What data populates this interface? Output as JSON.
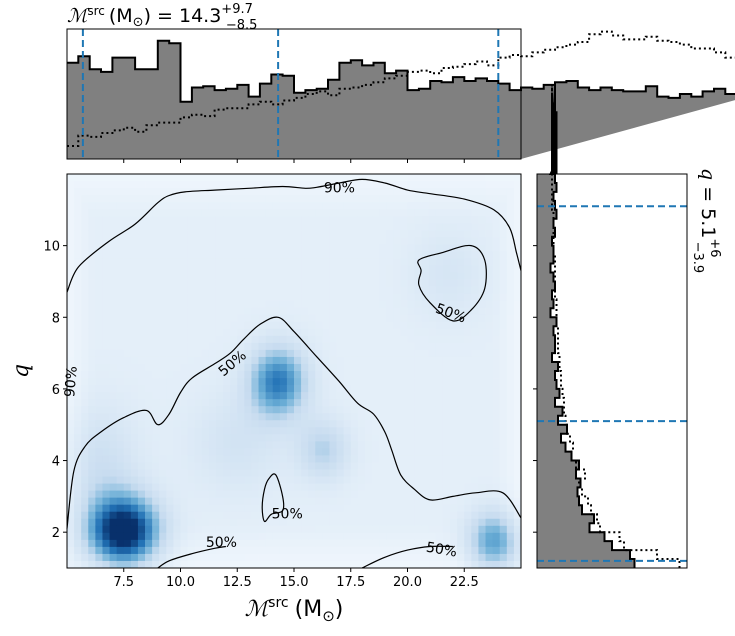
{
  "chart_data": [
    {
      "panel": "joint",
      "type": "heatmap",
      "xlabel_main": "ℳ",
      "xlabel_sup": "src",
      "xlabel_unit": "(M",
      "xlabel_unit_sub": "⊙",
      "xlabel_unit_close": ")",
      "ylabel": "q",
      "xlim": [
        5.0,
        25.0
      ],
      "ylim": [
        1.0,
        12.0
      ],
      "xticks": [
        "7.5",
        "10.0",
        "12.5",
        "15.0",
        "17.5",
        "20.0",
        "22.5"
      ],
      "xtick_values": [
        7.5,
        10.0,
        12.5,
        15.0,
        17.5,
        20.0,
        22.5
      ],
      "yticks": [
        "2",
        "4",
        "6",
        "8",
        "10"
      ],
      "ytick_values": [
        2,
        4,
        6,
        8,
        10
      ],
      "colormap": [
        "#f7fbff",
        "#deebf7",
        "#c6dbef",
        "#6baed6",
        "#2171b5",
        "#08306b"
      ],
      "density_peaks": [
        {
          "x": 7.5,
          "y": 2.0,
          "sx": 1.1,
          "sy": 0.7,
          "w": 1.0
        },
        {
          "x": 14.3,
          "y": 6.2,
          "sx": 0.9,
          "sy": 0.7,
          "w": 0.65
        },
        {
          "x": 16.3,
          "y": 4.3,
          "sx": 0.8,
          "sy": 0.6,
          "w": 0.3
        },
        {
          "x": 23.8,
          "y": 1.7,
          "sx": 0.8,
          "sy": 0.6,
          "w": 0.55
        },
        {
          "x": 21.8,
          "y": 9.2,
          "sx": 1.2,
          "sy": 0.9,
          "w": 0.12
        },
        {
          "x": 12.5,
          "y": 4.5,
          "sx": 1.5,
          "sy": 1.0,
          "w": 0.15
        },
        {
          "x": 6.5,
          "y": 3.8,
          "sx": 1.2,
          "sy": 1.2,
          "w": 0.2
        }
      ],
      "contours": [
        {
          "level": "90%",
          "points": [
            [
              5.0,
              8.7
            ],
            [
              5.5,
              9.4
            ],
            [
              6.8,
              10.1
            ],
            [
              8.0,
              10.6
            ],
            [
              9.0,
              11.2
            ],
            [
              9.5,
              11.4
            ],
            [
              10.2,
              11.5
            ],
            [
              11.5,
              11.55
            ],
            [
              13.0,
              11.6
            ],
            [
              14.5,
              11.65
            ],
            [
              15.5,
              11.6
            ],
            [
              16.0,
              11.63
            ],
            [
              17.0,
              11.75
            ],
            [
              18.0,
              11.85
            ],
            [
              19.0,
              11.75
            ],
            [
              20.0,
              11.55
            ],
            [
              21.0,
              11.45
            ],
            [
              22.5,
              11.3
            ],
            [
              23.8,
              11.0
            ],
            [
              24.5,
              10.5
            ],
            [
              24.8,
              9.8
            ],
            [
              25.0,
              9.3
            ]
          ],
          "labels": [
            {
              "text": "90%",
              "x": 17.0,
              "y": 11.6
            },
            {
              "text": "90%",
              "x": 5.2,
              "y": 6.2,
              "rotate": -85
            }
          ]
        },
        {
          "level": "50%",
          "points": [
            [
              5.0,
              2.1
            ],
            [
              5.3,
              3.7
            ],
            [
              5.8,
              4.4
            ],
            [
              6.5,
              4.8
            ],
            [
              7.5,
              5.2
            ],
            [
              8.5,
              5.4
            ],
            [
              9.0,
              5.0
            ],
            [
              9.5,
              5.3
            ],
            [
              10.0,
              5.9
            ],
            [
              10.5,
              6.3
            ],
            [
              11.5,
              6.7
            ],
            [
              12.2,
              7.0
            ],
            [
              12.8,
              7.4
            ],
            [
              13.5,
              7.8
            ],
            [
              14.3,
              8.0
            ],
            [
              15.0,
              7.6
            ],
            [
              16.0,
              6.9
            ],
            [
              17.0,
              6.2
            ],
            [
              17.8,
              5.6
            ],
            [
              18.5,
              5.3
            ],
            [
              19.0,
              4.8
            ],
            [
              19.3,
              4.3
            ],
            [
              19.7,
              3.6
            ],
            [
              20.3,
              3.2
            ],
            [
              21.0,
              2.9
            ],
            [
              22.0,
              3.0
            ],
            [
              23.0,
              3.1
            ],
            [
              24.2,
              3.1
            ],
            [
              25.0,
              2.4
            ]
          ],
          "labels": [
            {
              "text": "50%",
              "x": 12.3,
              "y": 6.7,
              "rotate": -40
            }
          ]
        },
        {
          "level": "50%",
          "points": [
            [
              14.2,
              3.6
            ],
            [
              14.5,
              3.0
            ],
            [
              14.5,
              2.6
            ],
            [
              14.0,
              2.5
            ],
            [
              13.7,
              2.3
            ],
            [
              13.6,
              2.7
            ],
            [
              13.7,
              3.2
            ],
            [
              13.9,
              3.5
            ]
          ],
          "closed": true,
          "labels": [
            {
              "text": "50%",
              "x": 14.7,
              "y": 2.5
            }
          ]
        },
        {
          "level": "50%",
          "points": [
            [
              20.5,
              9.6
            ],
            [
              21.5,
              9.8
            ],
            [
              22.8,
              10.0
            ],
            [
              23.4,
              9.6
            ],
            [
              23.4,
              8.8
            ],
            [
              22.8,
              8.2
            ],
            [
              22.0,
              7.9
            ],
            [
              21.0,
              8.4
            ],
            [
              20.5,
              8.9
            ],
            [
              20.6,
              9.3
            ]
          ],
          "closed": true,
          "labels": [
            {
              "text": "50%",
              "x": 21.9,
              "y": 8.1,
              "rotate": 20
            }
          ]
        },
        {
          "level": "50%",
          "points": [
            [
              9.0,
              1.0
            ],
            [
              9.5,
              1.2
            ],
            [
              10.5,
              1.4
            ],
            [
              11.5,
              1.55
            ],
            [
              12.0,
              1.6
            ]
          ],
          "labels": [
            {
              "text": "50%",
              "x": 11.8,
              "y": 1.7
            }
          ]
        },
        {
          "level": "50%",
          "points": [
            [
              18.0,
              1.0
            ],
            [
              19.0,
              1.3
            ],
            [
              20.0,
              1.5
            ],
            [
              21.0,
              1.6
            ],
            [
              22.0,
              1.6
            ]
          ],
          "labels": [
            {
              "text": "50%",
              "x": 21.5,
              "y": 1.5,
              "rotate": 10
            }
          ]
        }
      ]
    },
    {
      "panel": "marginal-x",
      "type": "histogram",
      "title_main": "ℳ",
      "title_sup": "src",
      "title_unit": "(M",
      "title_unit_sub": "⊙",
      "title_mid": ") = 14.3",
      "title_plus": "+9.7",
      "title_minus": "−8.5",
      "xlim": [
        5.0,
        25.0
      ],
      "bin_edges_start": 5.0,
      "bin_width": 0.5,
      "posterior": [
        0.74,
        0.79,
        0.69,
        0.67,
        0.78,
        0.78,
        0.69,
        0.69,
        0.91,
        0.89,
        0.44,
        0.55,
        0.56,
        0.53,
        0.54,
        0.57,
        0.48,
        0.58,
        0.65,
        0.64,
        0.51,
        0.53,
        0.54,
        0.61,
        0.74,
        0.76,
        0.72,
        0.74,
        0.66,
        0.68,
        0.53,
        0.54,
        0.6,
        0.59,
        0.63,
        0.6,
        0.62,
        0.6,
        0.58,
        0.53,
        0.55,
        0.54,
        0.57,
        0.59,
        0.6,
        0.55,
        0.53,
        0.55,
        0.53,
        0.52,
        0.52,
        0.56,
        0.48,
        0.47,
        0.5,
        0.48,
        0.52,
        0.54,
        0.5,
        0.48
      ],
      "prior": [
        0.1,
        0.18,
        0.17,
        0.2,
        0.22,
        0.24,
        0.21,
        0.26,
        0.28,
        0.28,
        0.32,
        0.34,
        0.33,
        0.38,
        0.39,
        0.39,
        0.42,
        0.44,
        0.42,
        0.45,
        0.47,
        0.5,
        0.52,
        0.49,
        0.54,
        0.55,
        0.57,
        0.59,
        0.62,
        0.64,
        0.67,
        0.68,
        0.66,
        0.7,
        0.71,
        0.73,
        0.75,
        0.72,
        0.78,
        0.8,
        0.79,
        0.82,
        0.84,
        0.86,
        0.88,
        0.9,
        0.96,
        0.98,
        0.95,
        0.92,
        0.92,
        0.94,
        0.91,
        0.9,
        0.88,
        0.85,
        0.85,
        0.82,
        0.78,
        0.74
      ],
      "quantiles": [
        5.7,
        14.3,
        24.0
      ]
    },
    {
      "panel": "marginal-y",
      "type": "histogram",
      "title_main": "q",
      "title_mid": " = 5.1",
      "title_plus": "+6",
      "title_minus": "−3.9",
      "ylim": [
        1.0,
        12.0
      ],
      "bin_edges_start": 1.0,
      "bin_width": 0.25,
      "posterior": [
        0.65,
        0.62,
        0.5,
        0.45,
        0.35,
        0.38,
        0.3,
        0.28,
        0.27,
        0.29,
        0.26,
        0.28,
        0.23,
        0.19,
        0.16,
        0.2,
        0.14,
        0.17,
        0.12,
        0.15,
        0.13,
        0.12,
        0.14,
        0.1,
        0.12,
        0.12,
        0.11,
        0.13,
        0.09,
        0.11,
        0.1,
        0.12,
        0.11,
        0.09,
        0.11,
        0.11,
        0.1,
        0.12,
        0.11,
        0.13,
        0.12,
        0.11,
        0.13,
        0.12,
        0.09,
        0.12,
        0.1,
        0.11,
        0.12,
        0.13,
        0.12,
        0.13,
        0.11,
        0.1,
        0.12
      ],
      "prior": [
        0.95,
        0.8,
        0.58,
        0.55,
        0.42,
        0.4,
        0.36,
        0.34,
        0.3,
        0.28,
        0.32,
        0.26,
        0.23,
        0.24,
        0.22,
        0.2,
        0.19,
        0.18,
        0.18,
        0.17,
        0.16,
        0.16,
        0.15,
        0.15,
        0.14,
        0.14,
        0.14,
        0.13,
        0.13,
        0.13,
        0.12,
        0.12,
        0.12,
        0.12,
        0.12,
        0.11,
        0.11,
        0.11,
        0.11,
        0.11,
        0.1,
        0.1,
        0.1,
        0.1,
        0.1,
        0.1,
        0.1,
        0.1,
        0.1,
        0.1,
        0.1,
        0.1,
        0.1,
        0.1,
        0.1
      ],
      "quantiles": [
        1.2,
        5.1,
        11.1
      ]
    }
  ],
  "colors": {
    "posterior_fill": "#808080",
    "posterior_edge": "#000000",
    "prior_line": "#000000",
    "quantile_line": "#1f77b4",
    "contour_line": "#000000"
  }
}
